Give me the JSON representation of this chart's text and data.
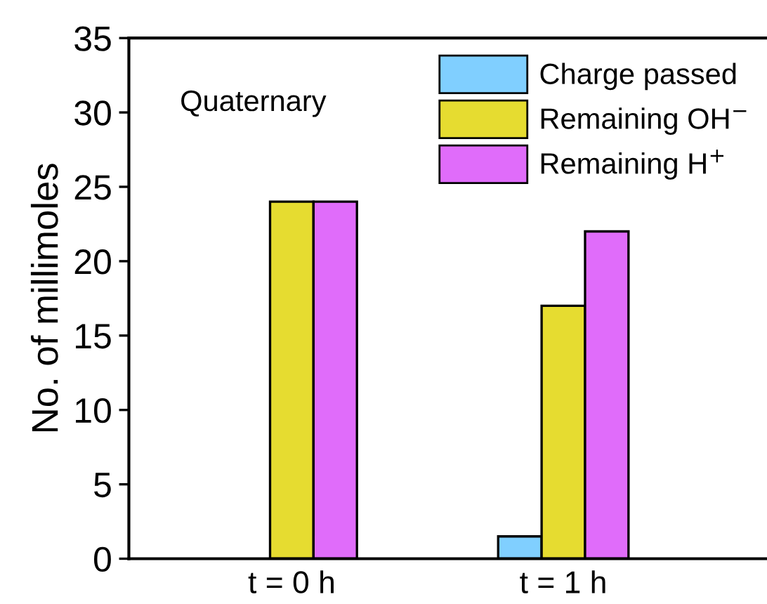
{
  "chart_data": {
    "type": "bar",
    "ylabel": "No. of millimoles",
    "categories": [
      "t = 0 h",
      "t = 1 h"
    ],
    "series": [
      {
        "name": "Charge passed",
        "color": "#80cfff",
        "values": [
          null,
          1.5
        ]
      },
      {
        "name": "Remaining OH$^{−}$",
        "color": "#e6dc30",
        "values": [
          24,
          17
        ]
      },
      {
        "name": "Remaining H$^{+}$",
        "color": "#e06cfa",
        "values": [
          24,
          22
        ]
      }
    ],
    "ylim": [
      0,
      35
    ],
    "yticks": [
      0,
      5,
      10,
      15,
      20,
      25,
      30,
      35
    ],
    "annotations": [
      "Quaternary"
    ],
    "legend": "top right",
    "grid": false
  }
}
